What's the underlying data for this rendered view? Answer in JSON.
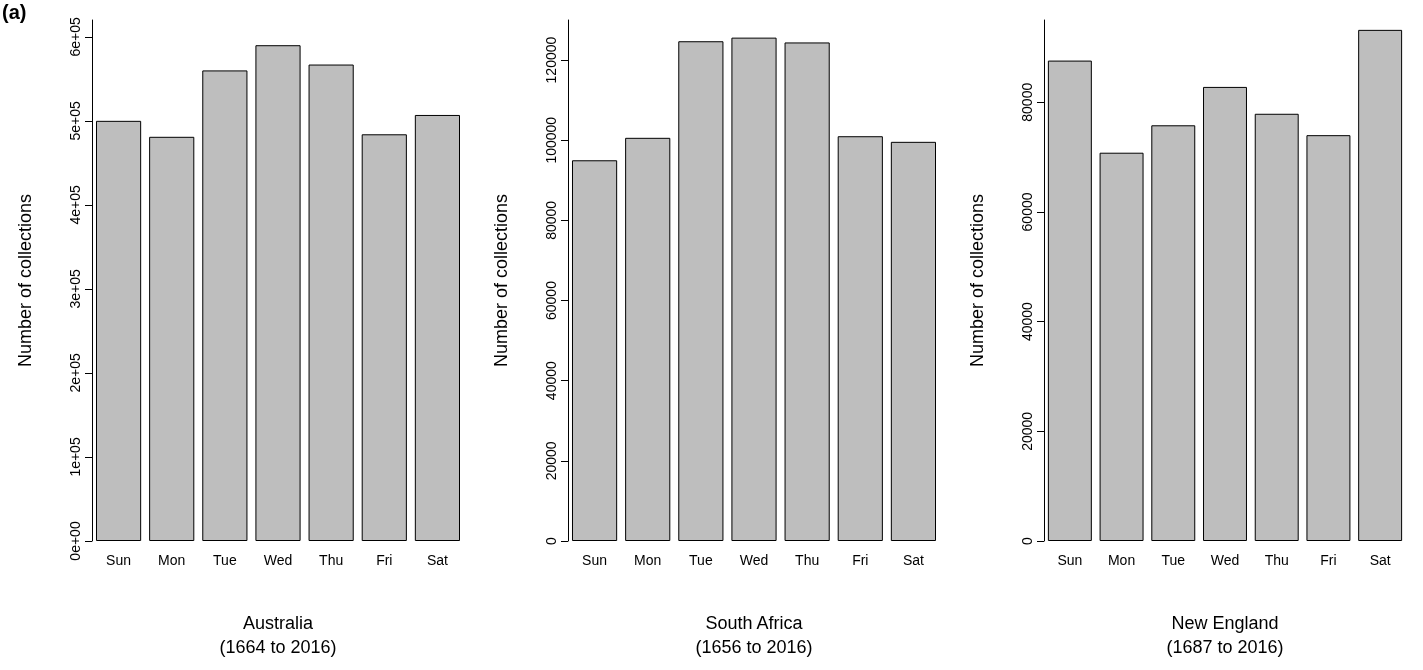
{
  "chart_data": [
    {
      "type": "bar",
      "annotations": [
        "(a)"
      ],
      "xlabel": "Australia\n(1664 to 2016)",
      "ylabel": "Number of collections",
      "categories": [
        "Sun",
        "Mon",
        "Tue",
        "Wed",
        "Thu",
        "Fri",
        "Sat"
      ],
      "color": "#bebebe",
      "values": [
        500000,
        481000,
        560000,
        590000,
        567000,
        484000,
        507000
      ],
      "ylim": [
        0,
        620000
      ],
      "yticks": [
        {
          "value": 0,
          "label": "0e+00"
        },
        {
          "value": 100000,
          "label": "1e+05"
        },
        {
          "value": 200000,
          "label": "2e+05"
        },
        {
          "value": 300000,
          "label": "3e+05"
        },
        {
          "value": 400000,
          "label": "4e+05"
        },
        {
          "value": 500000,
          "label": "5e+05"
        },
        {
          "value": 600000,
          "label": "6e+05"
        }
      ]
    },
    {
      "type": "bar",
      "xlabel": "South Africa\n(1656 to 2016)",
      "ylabel": "Number of collections",
      "categories": [
        "Sun",
        "Mon",
        "Tue",
        "Wed",
        "Thu",
        "Fri",
        "Sat"
      ],
      "color": "#bebebe",
      "values": [
        95000,
        100600,
        124700,
        125600,
        124400,
        101000,
        99600
      ],
      "ylim": [
        0,
        130000
      ],
      "yticks": [
        0,
        20000,
        40000,
        60000,
        80000,
        100000,
        120000
      ]
    },
    {
      "type": "bar",
      "xlabel": "New England\n(1687 to 2016)",
      "ylabel": "Number of collections",
      "categories": [
        "Sun",
        "Mon",
        "Tue",
        "Wed",
        "Thu",
        "Fri",
        "Sat"
      ],
      "color": "#bebebe",
      "values": [
        87600,
        70800,
        75800,
        82800,
        77900,
        74000,
        93200
      ],
      "ylim": [
        0,
        95000
      ],
      "yticks": [
        0,
        20000,
        40000,
        60000,
        80000
      ]
    }
  ]
}
